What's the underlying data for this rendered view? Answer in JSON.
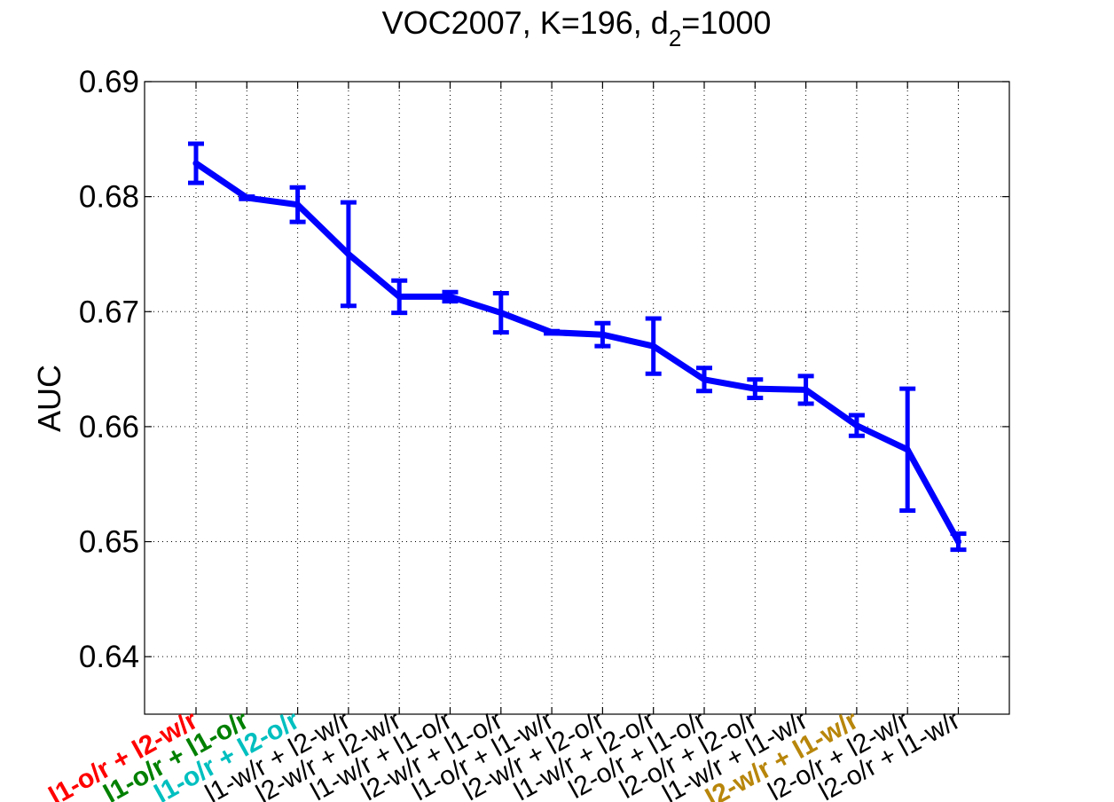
{
  "chart_data": {
    "type": "line",
    "title": "VOC2007, K=196, d",
    "title_sub": "2",
    "title_suffix": "=1000",
    "xlabel": "",
    "ylabel": "AUC",
    "ylim": [
      0.635,
      0.69
    ],
    "yticks": [
      "0.64",
      "0.65",
      "0.66",
      "0.67",
      "0.68",
      "0.69"
    ],
    "grid": true,
    "series": [
      {
        "name": "AUC",
        "color": "#0000ff",
        "values": [
          0.6829,
          0.6799,
          0.6793,
          0.675,
          0.6713,
          0.6713,
          0.6699,
          0.6682,
          0.668,
          0.667,
          0.6641,
          0.6633,
          0.6632,
          0.6601,
          0.658,
          0.65
        ],
        "error": [
          0.0017,
          0.0001,
          0.0015,
          0.0045,
          0.0014,
          0.0004,
          0.0017,
          0.0001,
          0.001,
          0.0024,
          0.001,
          0.0008,
          0.0012,
          0.0009,
          0.0053,
          0.0007
        ]
      }
    ],
    "categories": [
      {
        "label": "l1-o/r + l2-w/r",
        "color": "#ff0000",
        "bold": true
      },
      {
        "label": "l1-o/r + l1-o/r",
        "color": "#008000",
        "bold": true
      },
      {
        "label": "l1-o/r + l2-o/r",
        "color": "#00bfbf",
        "bold": true
      },
      {
        "label": "l1-w/r + l2-w/r",
        "color": "#000000",
        "bold": false
      },
      {
        "label": "l2-w/r + l2-w/r",
        "color": "#000000",
        "bold": false
      },
      {
        "label": "l1-w/r + l1-o/r",
        "color": "#000000",
        "bold": false
      },
      {
        "label": "l2-w/r + l1-o/r",
        "color": "#000000",
        "bold": false
      },
      {
        "label": "l1-o/r + l1-w/r",
        "color": "#000000",
        "bold": false
      },
      {
        "label": "l2-w/r + l2-o/r",
        "color": "#000000",
        "bold": false
      },
      {
        "label": "l1-w/r + l2-o/r",
        "color": "#000000",
        "bold": false
      },
      {
        "label": "l2-o/r + l1-o/r",
        "color": "#000000",
        "bold": false
      },
      {
        "label": "l2-o/r + l2-o/r",
        "color": "#000000",
        "bold": false
      },
      {
        "label": "l1-w/r + l1-w/r",
        "color": "#000000",
        "bold": false
      },
      {
        "label": "l2-w/r + l1-w/r",
        "color": "#b8860b",
        "bold": true
      },
      {
        "label": "l2-o/r + l2-w/r",
        "color": "#000000",
        "bold": false
      },
      {
        "label": "l2-o/r + l1-w/r",
        "color": "#000000",
        "bold": false
      }
    ]
  }
}
